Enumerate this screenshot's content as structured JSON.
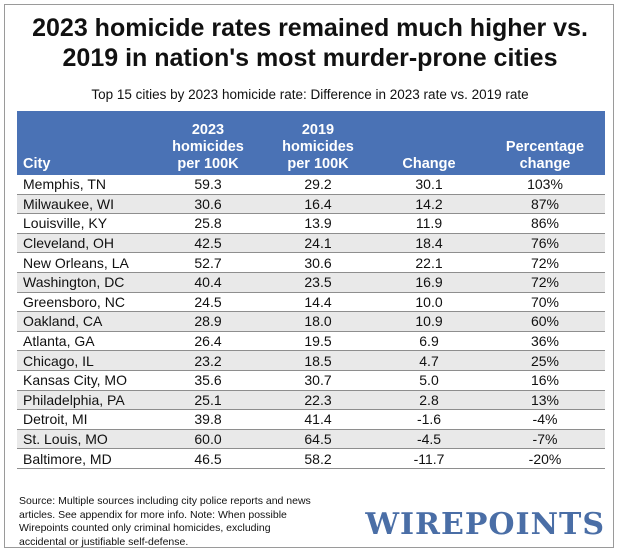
{
  "title_line1": "2023 homicide rates remained much higher vs.",
  "title_line2": "2019 in nation's most murder-prone cities",
  "subtitle": "Top 15 cities by 2023 homicide rate: Difference in 2023 rate vs. 2019 rate",
  "columns": {
    "city": "City",
    "h2023": [
      "2023",
      "homicides",
      "per 100K"
    ],
    "h2019": [
      "2019",
      "homicides",
      "per 100K"
    ],
    "change": "Change",
    "pct": [
      "Percentage",
      "change"
    ]
  },
  "chart_data": {
    "type": "table",
    "title": "2023 homicide rates remained much higher vs. 2019 in nation's most murder-prone cities",
    "subtitle": "Top 15 cities by 2023 homicide rate: Difference in 2023 rate vs. 2019 rate",
    "rows": [
      {
        "city": "Memphis, TN",
        "h2023": "59.3",
        "h2019": "29.2",
        "change": "30.1",
        "pct": "103%"
      },
      {
        "city": "Milwaukee, WI",
        "h2023": "30.6",
        "h2019": "16.4",
        "change": "14.2",
        "pct": "87%"
      },
      {
        "city": "Louisville, KY",
        "h2023": "25.8",
        "h2019": "13.9",
        "change": "11.9",
        "pct": "86%"
      },
      {
        "city": "Cleveland, OH",
        "h2023": "42.5",
        "h2019": "24.1",
        "change": "18.4",
        "pct": "76%"
      },
      {
        "city": "New Orleans, LA",
        "h2023": "52.7",
        "h2019": "30.6",
        "change": "22.1",
        "pct": "72%"
      },
      {
        "city": "Washington, DC",
        "h2023": "40.4",
        "h2019": "23.5",
        "change": "16.9",
        "pct": "72%"
      },
      {
        "city": "Greensboro, NC",
        "h2023": "24.5",
        "h2019": "14.4",
        "change": "10.0",
        "pct": "70%"
      },
      {
        "city": "Oakland, CA",
        "h2023": "28.9",
        "h2019": "18.0",
        "change": "10.9",
        "pct": "60%"
      },
      {
        "city": "Atlanta, GA",
        "h2023": "26.4",
        "h2019": "19.5",
        "change": "6.9",
        "pct": "36%"
      },
      {
        "city": "Chicago, IL",
        "h2023": "23.2",
        "h2019": "18.5",
        "change": "4.7",
        "pct": "25%"
      },
      {
        "city": "Kansas City, MO",
        "h2023": "35.6",
        "h2019": "30.7",
        "change": "5.0",
        "pct": "16%"
      },
      {
        "city": "Philadelphia, PA",
        "h2023": "25.1",
        "h2019": "22.3",
        "change": "2.8",
        "pct": "13%"
      },
      {
        "city": "Detroit, MI",
        "h2023": "39.8",
        "h2019": "41.4",
        "change": "-1.6",
        "pct": "-4%"
      },
      {
        "city": "St. Louis, MO",
        "h2023": "60.0",
        "h2019": "64.5",
        "change": "-4.5",
        "pct": "-7%"
      },
      {
        "city": "Baltimore, MD",
        "h2023": "46.5",
        "h2019": "58.2",
        "change": "-11.7",
        "pct": "-20%"
      }
    ]
  },
  "source_lines": [
    "Source: Multiple sources including city police reports and news",
    "articles. See appendix for more info.  Note: When possible",
    "Wirepoints counted only criminal homicides, excluding",
    "accidental or justifiable self-defense."
  ],
  "logo_text": "WIREPOINTS",
  "colors": {
    "header_bg": "#4a72b5",
    "stripe": "#e9e9e9",
    "logo": "#4a6ea6"
  }
}
